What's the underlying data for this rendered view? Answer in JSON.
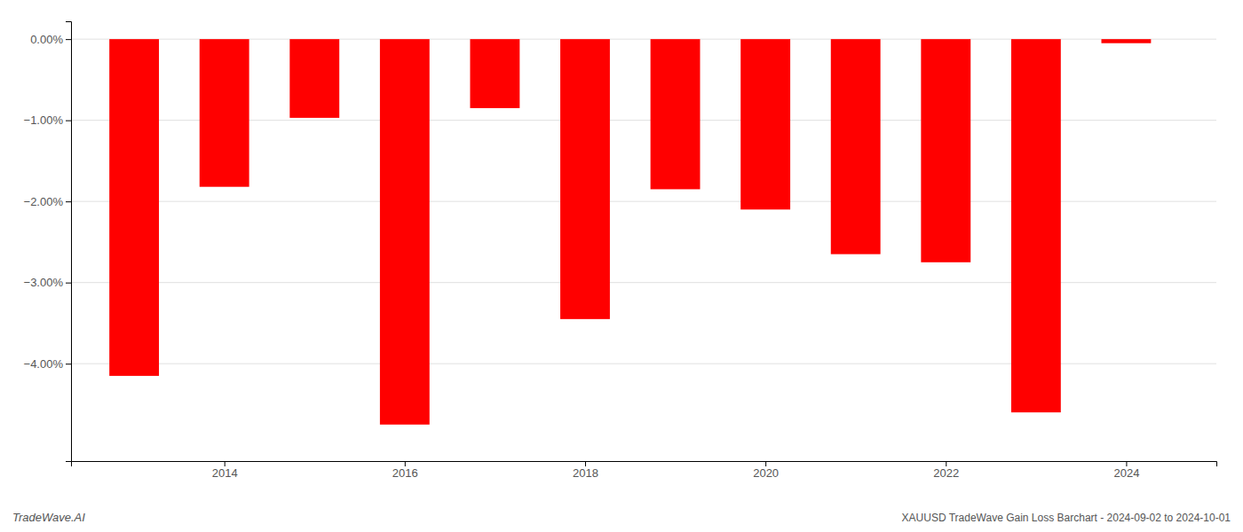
{
  "chart_data": {
    "type": "bar",
    "title": "XAUUSD TradeWave Gain Loss Barchart - 2024-09-02 to 2024-10-01",
    "annotations": [
      {
        "text": "TradeWave.AI"
      }
    ],
    "x": [
      2013,
      2014,
      2015,
      2016,
      2017,
      2018,
      2019,
      2020,
      2021,
      2022,
      2023,
      2024
    ],
    "values": [
      -4.15,
      -1.82,
      -0.97,
      -4.75,
      -0.85,
      -3.45,
      -1.85,
      -2.1,
      -2.65,
      -2.75,
      -4.6,
      -0.05
    ],
    "color": "#ff0000",
    "xlim": [
      2012.3,
      2025.0
    ],
    "xticks": [
      2014,
      2016,
      2018,
      2020,
      2022,
      2024
    ],
    "ylim": [
      -5.2,
      0.22
    ],
    "yticks": [
      {
        "value": 0.0,
        "label": "0.00%"
      },
      {
        "value": -1.0,
        "label": "−1.00%"
      },
      {
        "value": -2.0,
        "label": "−2.00%"
      },
      {
        "value": -3.0,
        "label": "−3.00%"
      },
      {
        "value": -4.0,
        "label": "−4.00%"
      }
    ],
    "grid": true
  }
}
